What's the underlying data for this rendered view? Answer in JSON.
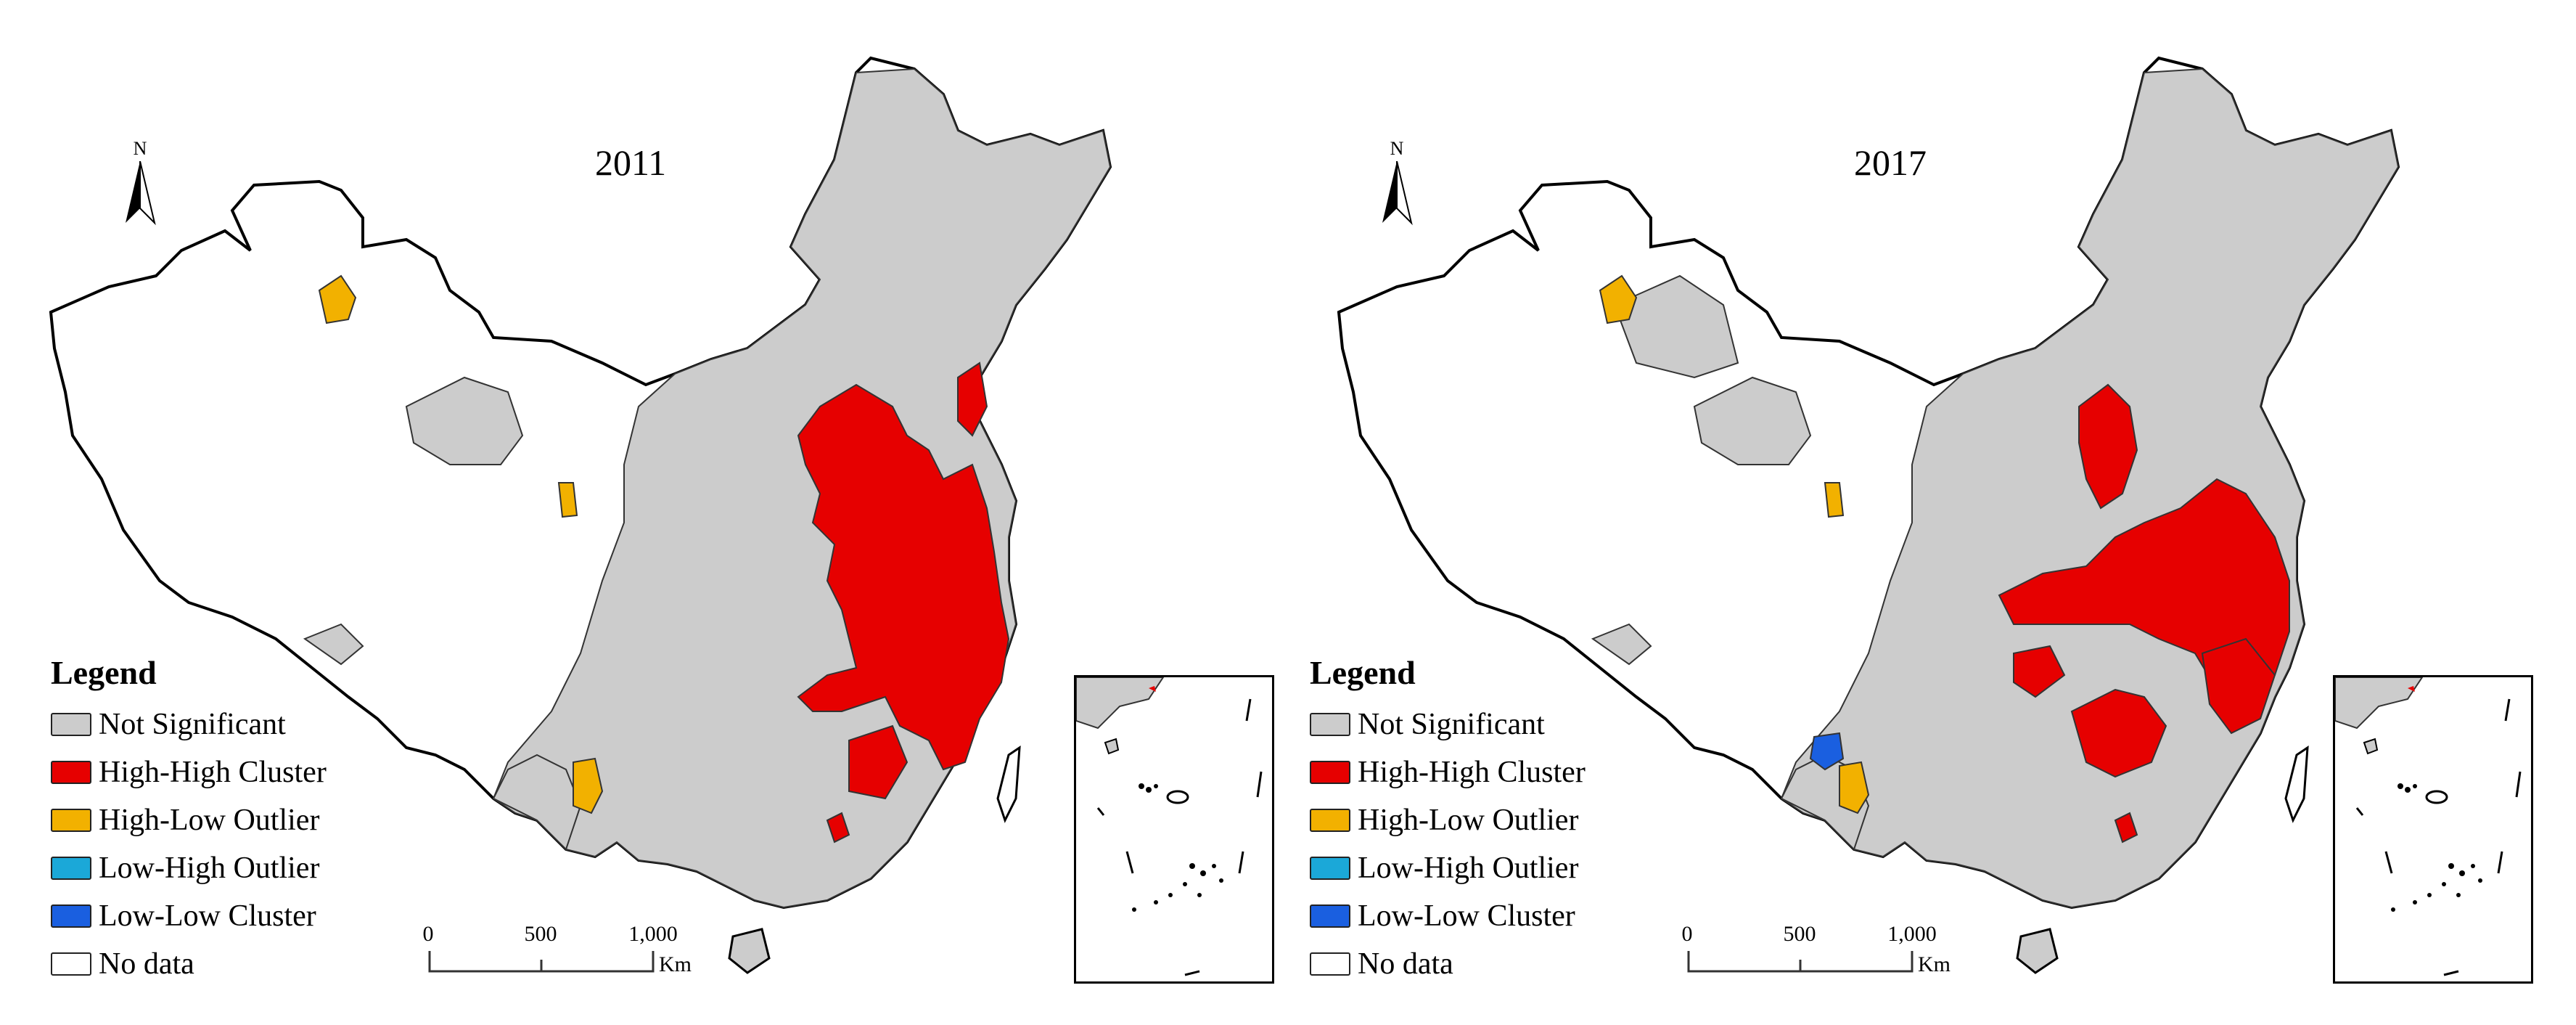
{
  "colors": {
    "not_significant": "#cccccc",
    "high_high": "#e60000",
    "high_low": "#f2b100",
    "low_high": "#1ba8d8",
    "low_low": "#1a5fe0",
    "no_data": "#ffffff"
  },
  "north_arrow": {
    "label": "N",
    "icon": "north-arrow-icon"
  },
  "panels": [
    {
      "year": "2011",
      "legend": {
        "title": "Legend",
        "items": [
          {
            "label": "Not Significant",
            "color": "#cccccc"
          },
          {
            "label": "High-High Cluster",
            "color": "#e60000"
          },
          {
            "label": "High-Low Outlier",
            "color": "#f2b100"
          },
          {
            "label": "Low-High Outlier",
            "color": "#1ba8d8"
          },
          {
            "label": "Low-Low Cluster",
            "color": "#1a5fe0"
          },
          {
            "label": "No data",
            "color": "#ffffff"
          }
        ]
      },
      "scale": {
        "ticks": [
          "0",
          "500",
          "1,000"
        ],
        "unit": "Km"
      }
    },
    {
      "year": "2017",
      "legend": {
        "title": "Legend",
        "items": [
          {
            "label": "Not Significant",
            "color": "#cccccc"
          },
          {
            "label": "High-High Cluster",
            "color": "#e60000"
          },
          {
            "label": "High-Low Outlier",
            "color": "#f2b100"
          },
          {
            "label": "Low-High Outlier",
            "color": "#1ba8d8"
          },
          {
            "label": "Low-Low Cluster",
            "color": "#1a5fe0"
          },
          {
            "label": "No data",
            "color": "#ffffff"
          }
        ]
      },
      "scale": {
        "ticks": [
          "0",
          "500",
          "1,000"
        ],
        "unit": "Km"
      }
    }
  ]
}
